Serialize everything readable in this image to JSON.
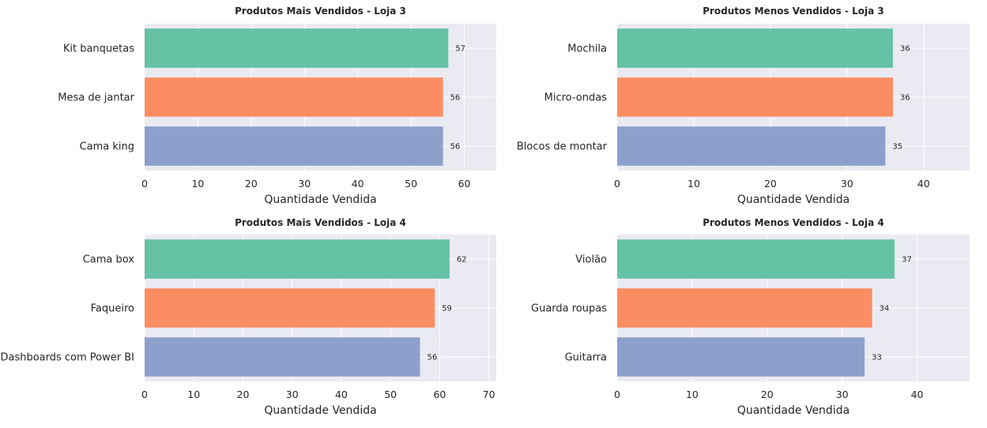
{
  "colors": {
    "plot_bg": "#eaeaf2",
    "grid": "#ffffff",
    "bar_1": "#66c2a5",
    "bar_2": "#fc8d62",
    "bar_3": "#8da0cb"
  },
  "chart_data": [
    {
      "type": "bar",
      "orientation": "horizontal",
      "title": "Produtos Mais Vendidos - Loja 3",
      "xlabel": "Quantidade Vendida",
      "categories": [
        "Kit banquetas",
        "Mesa de jantar",
        "Cama king"
      ],
      "values": [
        57,
        56,
        56
      ],
      "value_labels": [
        "57",
        "56",
        "56"
      ],
      "xlim": [
        0,
        66
      ],
      "xticks": [
        0,
        10,
        20,
        30,
        40,
        50,
        60
      ],
      "xtick_labels": [
        "0",
        "10",
        "20",
        "30",
        "40",
        "50",
        "60"
      ],
      "grid": true
    },
    {
      "type": "bar",
      "orientation": "horizontal",
      "title": "Produtos Menos Vendidos - Loja 3",
      "xlabel": "Quantidade Vendida",
      "categories": [
        "Mochila",
        "Micro-ondas",
        "Blocos de montar"
      ],
      "values": [
        36,
        36,
        35
      ],
      "value_labels": [
        "36",
        "36",
        "35"
      ],
      "xlim": [
        0,
        46
      ],
      "xticks": [
        0,
        10,
        20,
        30,
        40
      ],
      "xtick_labels": [
        "0",
        "10",
        "20",
        "30",
        "40"
      ],
      "grid": true
    },
    {
      "type": "bar",
      "orientation": "horizontal",
      "title": "Produtos Mais Vendidos - Loja 4",
      "xlabel": "Quantidade Vendida",
      "categories": [
        "Cama box",
        "Faqueiro",
        "Dashboards com Power BI"
      ],
      "values": [
        62,
        59,
        56
      ],
      "value_labels": [
        "62",
        "59",
        "56"
      ],
      "xlim": [
        0,
        71.5
      ],
      "xticks": [
        0,
        10,
        20,
        30,
        40,
        50,
        60,
        70
      ],
      "xtick_labels": [
        "0",
        "10",
        "20",
        "30",
        "40",
        "50",
        "60",
        "70"
      ],
      "grid": true
    },
    {
      "type": "bar",
      "orientation": "horizontal",
      "title": "Produtos Menos Vendidos - Loja 4",
      "xlabel": "Quantidade Vendida",
      "categories": [
        "Violão",
        "Guarda roupas",
        "Guitarra"
      ],
      "values": [
        37,
        34,
        33
      ],
      "value_labels": [
        "37",
        "34",
        "33"
      ],
      "xlim": [
        0,
        47
      ],
      "xticks": [
        0,
        10,
        20,
        30,
        40
      ],
      "xtick_labels": [
        "0",
        "10",
        "20",
        "30",
        "40"
      ],
      "grid": true
    }
  ]
}
